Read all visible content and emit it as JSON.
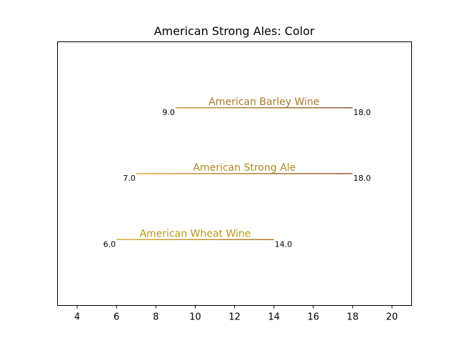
{
  "chart_data": {
    "type": "range",
    "title": "American Strong Ales: Color",
    "xlabel": "",
    "ylabel": "",
    "xlim": [
      3,
      21
    ],
    "xticks": [
      4,
      6,
      8,
      10,
      12,
      14,
      16,
      18,
      20
    ],
    "grid": false,
    "ranges": [
      {
        "name": "American Barley Wine",
        "start": 9.0,
        "end": 18.0,
        "start_label": "9.0",
        "end_label": "18.0",
        "label_color": "#a87a2a",
        "color_start": "#c59a3a",
        "color_end": "#9a5a3a"
      },
      {
        "name": "American Strong Ale",
        "start": 7.0,
        "end": 18.0,
        "start_label": "7.0",
        "end_label": "18.0",
        "label_color": "#b08a20",
        "color_start": "#d4a840",
        "color_end": "#9a5a3a"
      },
      {
        "name": "American Wheat Wine",
        "start": 6.0,
        "end": 14.0,
        "start_label": "6.0",
        "end_label": "14.0",
        "label_color": "#b89818",
        "color_start": "#d8b040",
        "color_end": "#b07828"
      }
    ]
  }
}
